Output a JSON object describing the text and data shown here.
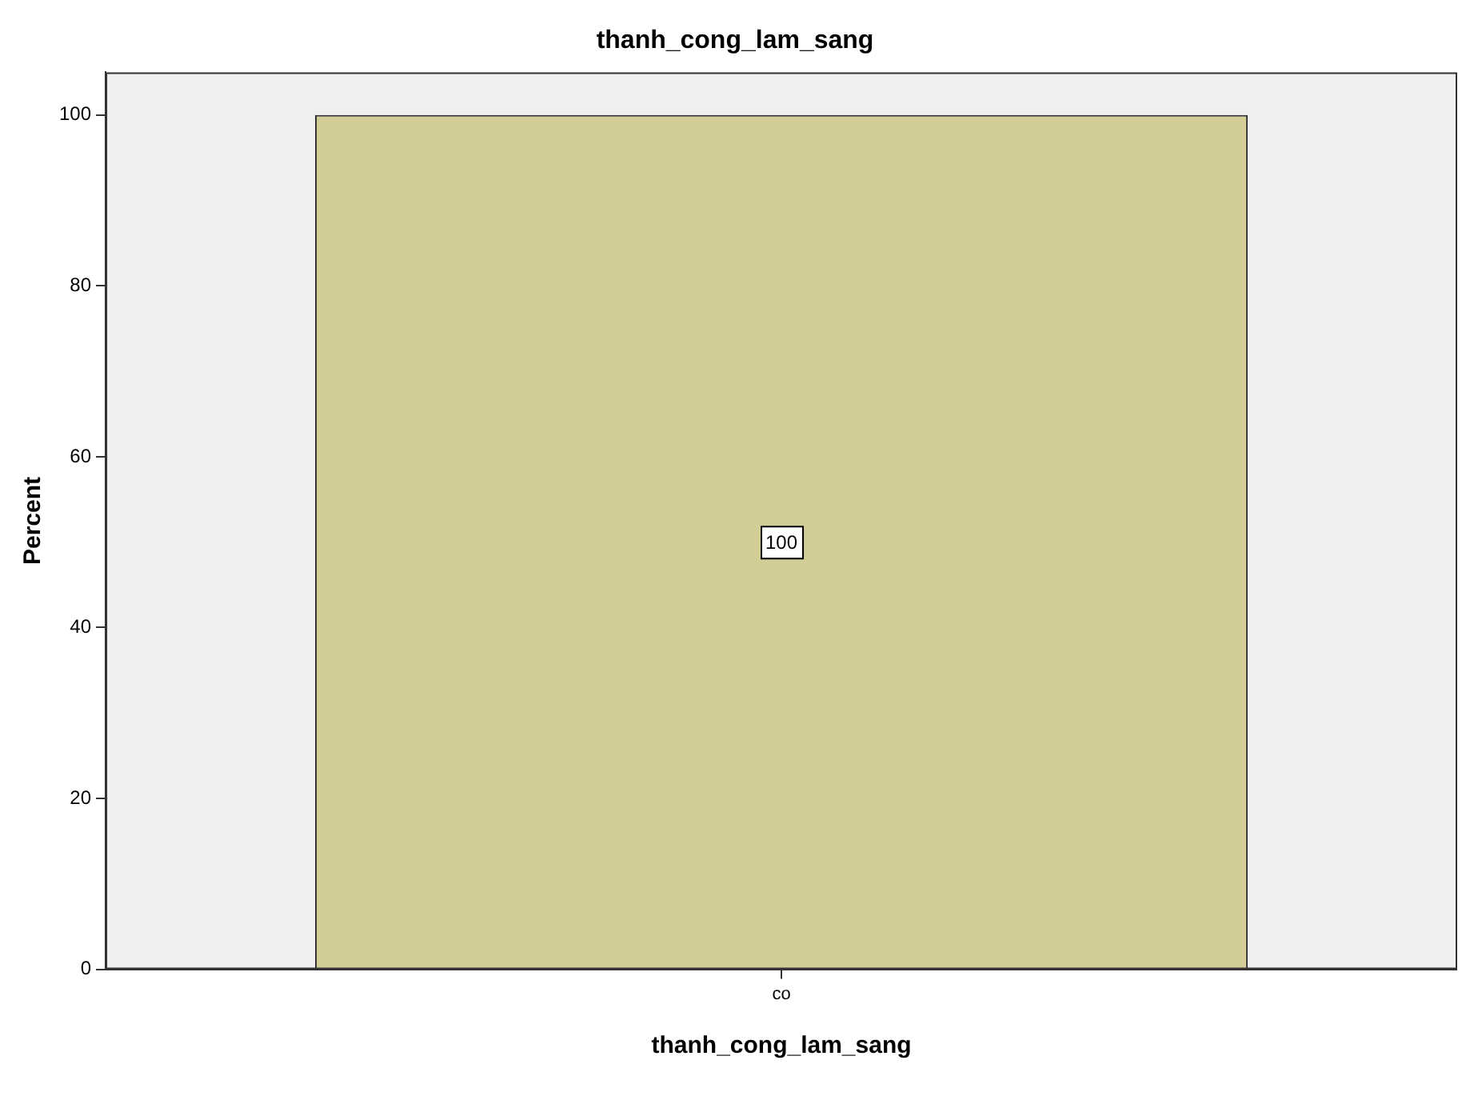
{
  "chart_data": {
    "type": "bar",
    "title": "thanh_cong_lam_sang",
    "xlabel": "thanh_cong_lam_sang",
    "ylabel": "Percent",
    "categories": [
      "co"
    ],
    "values": [
      100
    ],
    "color": "#d2cc96",
    "ylim": [
      0,
      105
    ],
    "yticks": [
      0,
      20,
      40,
      60,
      80,
      100
    ],
    "grid": false,
    "legend": false,
    "data_labels": true
  }
}
